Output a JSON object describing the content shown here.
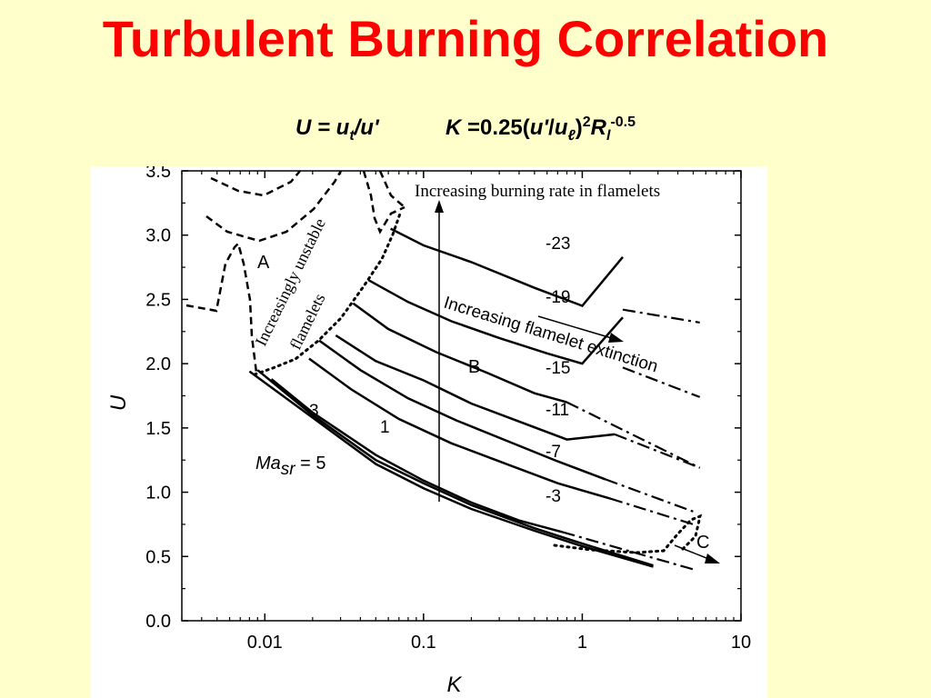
{
  "slide": {
    "title": "Turbulent Burning Correlation",
    "formula": {
      "U_def_lhs": "U = u",
      "U_def_sub": "t",
      "U_def_rhs": "/u'",
      "K_def_lhs": "K",
      "K_def_mid": " =0.25(",
      "K_def_u": "u'",
      "K_def_slash": "/",
      "K_def_ul": "u",
      "K_def_ul_sub": "ℓ",
      "K_def_close": ")",
      "K_def_pow": "2",
      "K_def_R": "R",
      "K_def_R_sub": "l",
      "K_def_R_pow": "-0.5"
    }
  },
  "chart_data": {
    "type": "line",
    "xscale": "log",
    "xlim": [
      0.003,
      10
    ],
    "ylim": [
      0,
      3.5
    ],
    "xlabel": "K",
    "ylabel": "U",
    "xticks": [
      0.01,
      0.1,
      1,
      10
    ],
    "xtick_labels": [
      "0.01",
      "0.1",
      "1",
      "10"
    ],
    "yticks": [
      0,
      0.5,
      1.0,
      1.5,
      2.0,
      2.5,
      3.0,
      3.5
    ],
    "ytick_labels": [
      "0.0",
      "0.5",
      "1.0",
      "1.5",
      "2.0",
      "2.5",
      "3.0",
      "3.5"
    ],
    "series": [
      {
        "name": "-23",
        "style": "solid",
        "x": [
          0.062,
          0.1,
          0.2,
          0.5,
          1,
          1.8
        ],
        "y": [
          3.05,
          2.92,
          2.79,
          2.59,
          2.45,
          2.83
        ]
      },
      {
        "name": "-19",
        "style": "solid",
        "x": [
          0.045,
          0.08,
          0.15,
          0.3,
          0.6,
          1,
          1.8
        ],
        "y": [
          2.65,
          2.48,
          2.33,
          2.2,
          2.08,
          2.0,
          2.36
        ]
      },
      {
        "name": "-15",
        "style": "solid",
        "x": [
          0.036,
          0.06,
          0.12,
          0.25,
          0.5,
          0.8
        ],
        "y": [
          2.47,
          2.27,
          2.09,
          1.93,
          1.77,
          1.7
        ]
      },
      {
        "name": "-11",
        "style": "solid",
        "x": [
          0.028,
          0.05,
          0.1,
          0.2,
          0.4,
          0.8,
          1.6
        ],
        "y": [
          2.22,
          2.02,
          1.87,
          1.69,
          1.55,
          1.41,
          1.45
        ]
      },
      {
        "name": "-7",
        "style": "solid",
        "x": [
          0.022,
          0.04,
          0.08,
          0.16,
          0.35,
          0.7,
          1.4
        ],
        "y": [
          2.18,
          1.95,
          1.73,
          1.56,
          1.39,
          1.24,
          1.1
        ]
      },
      {
        "name": "-3",
        "style": "solid",
        "x": [
          0.019,
          0.035,
          0.07,
          0.15,
          0.3,
          0.7,
          1.5
        ],
        "y": [
          2.04,
          1.8,
          1.57,
          1.38,
          1.24,
          1.07,
          0.95
        ]
      },
      {
        "name": "1",
        "style": "solid",
        "x": [
          0.011,
          0.02,
          0.05,
          0.1,
          0.2,
          0.4,
          0.75
        ],
        "y": [
          1.88,
          1.62,
          1.29,
          1.09,
          0.92,
          0.78,
          0.69
        ]
      },
      {
        "name": "3",
        "style": "solid",
        "x": [
          0.009,
          0.02,
          0.05,
          0.1,
          0.2,
          0.5,
          1,
          2.8
        ],
        "y": [
          1.95,
          1.6,
          1.25,
          1.07,
          0.9,
          0.72,
          0.6,
          0.43
        ]
      },
      {
        "name": "5",
        "style": "solid",
        "x": [
          0.008,
          0.02,
          0.05,
          0.1,
          0.2,
          0.5,
          1,
          2.8
        ],
        "y": [
          1.94,
          1.58,
          1.22,
          1.03,
          0.87,
          0.7,
          0.58,
          0.42
        ]
      }
    ],
    "annotations": {
      "title_text": "Increasing burning rate in flamelets",
      "extinction_text": "Increasing flamelet extinction",
      "unstable_text_1": "Increasingly unstable",
      "unstable_text_2": "flamelets",
      "region_A": "A",
      "region_B": "B",
      "region_C": "C",
      "ma_label_main": "Ma",
      "ma_label_sub": "sr",
      "ma_label_val": " = 5",
      "label_3": "3",
      "label_1": "1",
      "label_m23": "-23",
      "label_m19": "-19",
      "label_m15": "-15",
      "label_m11": "-11",
      "label_m7": "-7",
      "label_m3": "-3"
    },
    "grid": false,
    "legend": "none"
  }
}
